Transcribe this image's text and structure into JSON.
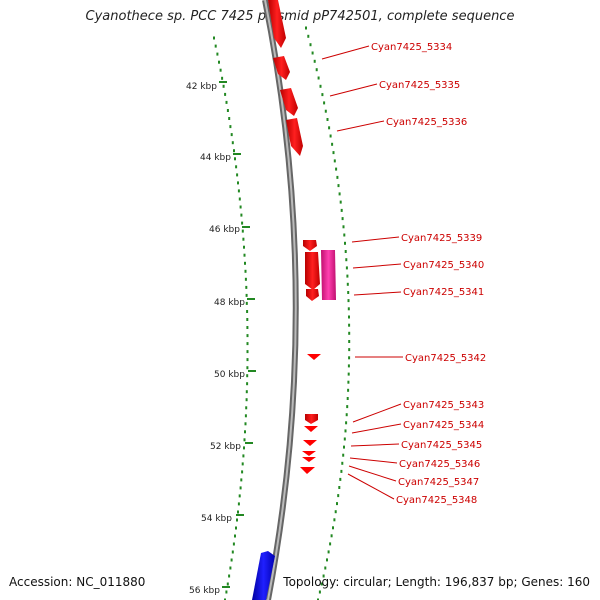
{
  "title": "Cyanothece sp. PCC 7425 plasmid pP742501, complete sequence",
  "accession": "Accession: NC_011880",
  "topology": "Topology: circular; Length: 196,837 bp; Genes: 160",
  "ticks": [
    "42 kbp",
    "44 kbp",
    "46 kbp",
    "48 kbp",
    "50 kbp",
    "52 kbp",
    "54 kbp",
    "56 kbp"
  ],
  "genes": [
    {
      "id": "g5334",
      "label": "Cyan7425_5334"
    },
    {
      "id": "g5335",
      "label": "Cyan7425_5335"
    },
    {
      "id": "g5336",
      "label": "Cyan7425_5336"
    },
    {
      "id": "g5339",
      "label": "Cyan7425_5339"
    },
    {
      "id": "g5340",
      "label": "Cyan7425_5340"
    },
    {
      "id": "g5341",
      "label": "Cyan7425_5341"
    },
    {
      "id": "g5342",
      "label": "Cyan7425_5342"
    },
    {
      "id": "g5343",
      "label": "Cyan7425_5343"
    },
    {
      "id": "g5344",
      "label": "Cyan7425_5344"
    },
    {
      "id": "g5345",
      "label": "Cyan7425_5345"
    },
    {
      "id": "g5346",
      "label": "Cyan7425_5346"
    },
    {
      "id": "g5347",
      "label": "Cyan7425_5347"
    },
    {
      "id": "g5348",
      "label": "Cyan7425_5348"
    }
  ],
  "colors": {
    "gene_forward": "#ff0000",
    "gene_pink": "#ee2299",
    "gene_blue": "#0000ee",
    "backbone": "#888888",
    "gc_marks": "#228822",
    "label": "#cc0000"
  }
}
